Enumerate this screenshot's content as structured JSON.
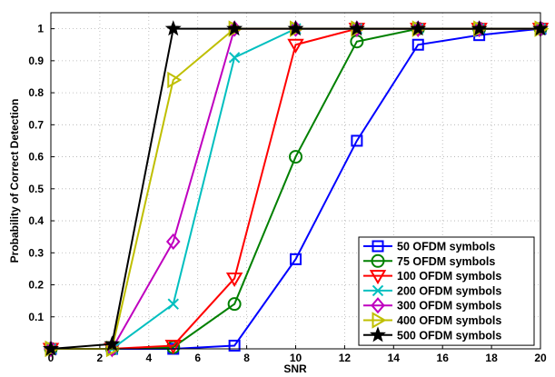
{
  "chart_data": {
    "type": "line",
    "xlabel": "SNR",
    "ylabel": "Probability of Correct Detection",
    "xlim": [
      0,
      20
    ],
    "ylim": [
      0,
      1.05
    ],
    "xticks": [
      "0",
      "2",
      "4",
      "6",
      "8",
      "10",
      "12",
      "14",
      "16",
      "18",
      "20"
    ],
    "yticks": [
      "0.1",
      "0.2",
      "0.3",
      "0.4",
      "0.5",
      "0.6",
      "0.7",
      "0.8",
      "0.9",
      "1"
    ],
    "grid": true,
    "legend_position": "bottom-right",
    "x": [
      0,
      2.5,
      5,
      7.5,
      10,
      12.5,
      15,
      17.5,
      20
    ],
    "series": [
      {
        "name": "50 OFDM symbols",
        "color": "#0000ff",
        "marker": "square",
        "values": [
          0,
          0,
          0,
          0.01,
          0.28,
          0.65,
          0.95,
          0.98,
          1
        ]
      },
      {
        "name": "75 OFDM symbols",
        "color": "#008000",
        "marker": "circle",
        "values": [
          0,
          0,
          0.005,
          0.14,
          0.6,
          0.96,
          1,
          1,
          1
        ]
      },
      {
        "name": "100 OFDM symbols",
        "color": "#ff0000",
        "marker": "triangle-down",
        "values": [
          0,
          0,
          0.01,
          0.22,
          0.95,
          1,
          1,
          1,
          1
        ]
      },
      {
        "name": "200 OFDM symbols",
        "color": "#00bfbf",
        "marker": "x",
        "values": [
          0,
          0,
          0.14,
          0.91,
          1,
          1,
          1,
          1,
          1
        ]
      },
      {
        "name": "300 OFDM symbols",
        "color": "#bf00bf",
        "marker": "diamond",
        "values": [
          0,
          0,
          0.335,
          1,
          1,
          1,
          1,
          1,
          1
        ]
      },
      {
        "name": "400 OFDM symbols",
        "color": "#bfbf00",
        "marker": "triangle-right",
        "values": [
          0,
          0,
          0.84,
          1,
          1,
          1,
          1,
          1,
          1
        ]
      },
      {
        "name": "500 OFDM symbols",
        "color": "#000000",
        "marker": "star",
        "values": [
          0,
          0.015,
          1,
          1,
          1,
          1,
          1,
          1,
          1
        ]
      }
    ]
  }
}
